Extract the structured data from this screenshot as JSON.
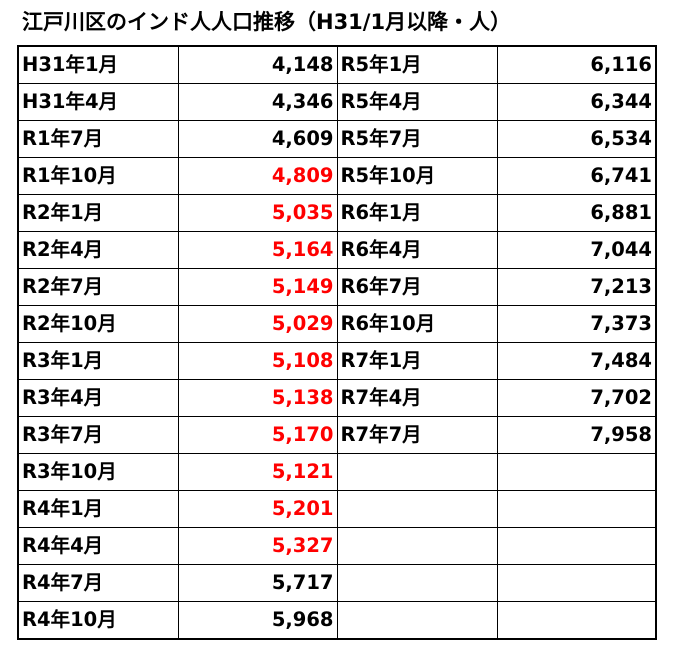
{
  "title": "江戸川区のインド人人口推移（H31/1月以降・人）",
  "colors": {
    "highlight": "#ff0000",
    "normal": "#000000"
  },
  "rows": [
    {
      "l1": "H31年1月",
      "v1": "4,148",
      "r1": false,
      "l2": "R5年1月",
      "v2": "6,116"
    },
    {
      "l1": "H31年4月",
      "v1": "4,346",
      "r1": false,
      "l2": "R5年4月",
      "v2": "6,344"
    },
    {
      "l1": "R1年7月",
      "v1": "4,609",
      "r1": false,
      "l2": "R5年7月",
      "v2": "6,534"
    },
    {
      "l1": "R1年10月",
      "v1": "4,809",
      "r1": true,
      "l2": "R5年10月",
      "v2": "6,741"
    },
    {
      "l1": "R2年1月",
      "v1": "5,035",
      "r1": true,
      "l2": "R6年1月",
      "v2": "6,881"
    },
    {
      "l1": "R2年4月",
      "v1": "5,164",
      "r1": true,
      "l2": "R6年4月",
      "v2": "7,044"
    },
    {
      "l1": "R2年7月",
      "v1": "5,149",
      "r1": true,
      "l2": "R6年7月",
      "v2": "7,213"
    },
    {
      "l1": "R2年10月",
      "v1": "5,029",
      "r1": true,
      "l2": "R6年10月",
      "v2": "7,373"
    },
    {
      "l1": "R3年1月",
      "v1": "5,108",
      "r1": true,
      "l2": "R7年1月",
      "v2": "7,484"
    },
    {
      "l1": "R3年4月",
      "v1": "5,138",
      "r1": true,
      "l2": "R7年4月",
      "v2": "7,702"
    },
    {
      "l1": "R3年7月",
      "v1": "5,170",
      "r1": true,
      "l2": "R7年7月",
      "v2": "7,958"
    },
    {
      "l1": "R3年10月",
      "v1": "5,121",
      "r1": true,
      "l2": "",
      "v2": ""
    },
    {
      "l1": "R4年1月",
      "v1": "5,201",
      "r1": true,
      "l2": "",
      "v2": ""
    },
    {
      "l1": "R4年4月",
      "v1": "5,327",
      "r1": true,
      "l2": "",
      "v2": ""
    },
    {
      "l1": "R4年7月",
      "v1": "5,717",
      "r1": false,
      "l2": "",
      "v2": ""
    },
    {
      "l1": "R4年10月",
      "v1": "5,968",
      "r1": false,
      "l2": "",
      "v2": ""
    }
  ]
}
